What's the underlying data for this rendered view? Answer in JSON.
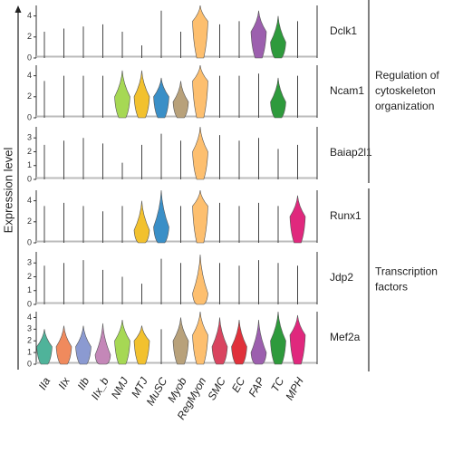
{
  "chart_data": {
    "type": "violin",
    "y_label": "Expression level",
    "categories": [
      "IIa",
      "IIx",
      "IIb",
      "IIx_b",
      "NMJ",
      "MTJ",
      "MuSC",
      "Myob",
      "RegMyon",
      "SMC",
      "EC",
      "FAP",
      "TC",
      "MPH"
    ],
    "colors": [
      "#4fb39a",
      "#f08a5d",
      "#8b9ad1",
      "#c487b8",
      "#a6d854",
      "#f2c12e",
      "#3a8fc7",
      "#b8a17a",
      "#fdbf6f",
      "#d9445f",
      "#e0313b",
      "#9c5fae",
      "#2e9a3c",
      "#e0287d"
    ],
    "rows": [
      {
        "name": "Dclk1",
        "ylim": [
          0,
          5
        ],
        "yticks": [
          0,
          2,
          4
        ],
        "values": [
          2.5,
          2.8,
          3,
          3.2,
          2.5,
          1.2,
          4.5,
          2.5,
          5,
          3.2,
          3.5,
          4.5,
          4,
          3.5
        ],
        "medians": [
          null,
          null,
          null,
          null,
          null,
          null,
          null,
          null,
          3.5,
          null,
          null,
          2.5,
          1.5,
          null
        ]
      },
      {
        "name": "Ncam1",
        "ylim": [
          0,
          5
        ],
        "yticks": [
          0,
          2,
          4
        ],
        "values": [
          3.5,
          4,
          4,
          4,
          4.5,
          4.5,
          3.8,
          3.5,
          5,
          4,
          4,
          4.2,
          3.8,
          4
        ],
        "medians": [
          null,
          null,
          null,
          null,
          2,
          2,
          2,
          1.5,
          3.5,
          null,
          null,
          null,
          1.5,
          null
        ]
      },
      {
        "name": "Baiap2l1",
        "ylim": [
          0,
          3.8
        ],
        "yticks": [
          0,
          1,
          2,
          3
        ],
        "values": [
          2.5,
          2.8,
          3,
          2.6,
          1.2,
          2.5,
          3.3,
          2.8,
          3.8,
          3.2,
          2.8,
          3,
          2.2,
          2.5
        ],
        "medians": [
          null,
          null,
          null,
          null,
          null,
          null,
          null,
          null,
          2,
          null,
          null,
          null,
          null,
          null
        ]
      },
      {
        "name": "Runx1",
        "ylim": [
          0,
          5
        ],
        "yticks": [
          0,
          2,
          4
        ],
        "values": [
          3.5,
          3.8,
          3.5,
          3,
          3.5,
          4,
          5,
          3.5,
          5,
          3.8,
          3.5,
          3.8,
          3.5,
          4.5
        ],
        "medians": [
          null,
          null,
          null,
          null,
          null,
          1.2,
          1.5,
          null,
          3.5,
          null,
          null,
          null,
          null,
          2.5
        ]
      },
      {
        "name": "Jdp2",
        "ylim": [
          0,
          3.8
        ],
        "yticks": [
          0,
          1,
          2,
          3
        ],
        "values": [
          2.8,
          3,
          3.2,
          2.5,
          2,
          1.5,
          3.3,
          3,
          3.6,
          3,
          2.8,
          3.2,
          3,
          2.8
        ],
        "medians": [
          null,
          null,
          null,
          null,
          null,
          null,
          null,
          null,
          0.8,
          null,
          null,
          null,
          null,
          null
        ]
      },
      {
        "name": "Mef2a",
        "ylim": [
          0,
          4.5
        ],
        "yticks": [
          0,
          1,
          2,
          3,
          4
        ],
        "values": [
          3,
          3.3,
          3.3,
          3.5,
          3.8,
          3.3,
          3,
          4,
          4.5,
          4,
          3.8,
          3.8,
          4.5,
          4.2
        ],
        "medians": [
          1.5,
          1.5,
          1.5,
          0.8,
          2,
          2,
          null,
          2,
          2.5,
          1.5,
          1.5,
          1,
          2,
          2.5
        ]
      }
    ],
    "groups": [
      {
        "label_lines": [
          "Regulation of",
          "cytoskeleton",
          "organization"
        ]
      },
      {
        "label_lines": [
          "Transcription",
          "factors"
        ]
      }
    ]
  }
}
